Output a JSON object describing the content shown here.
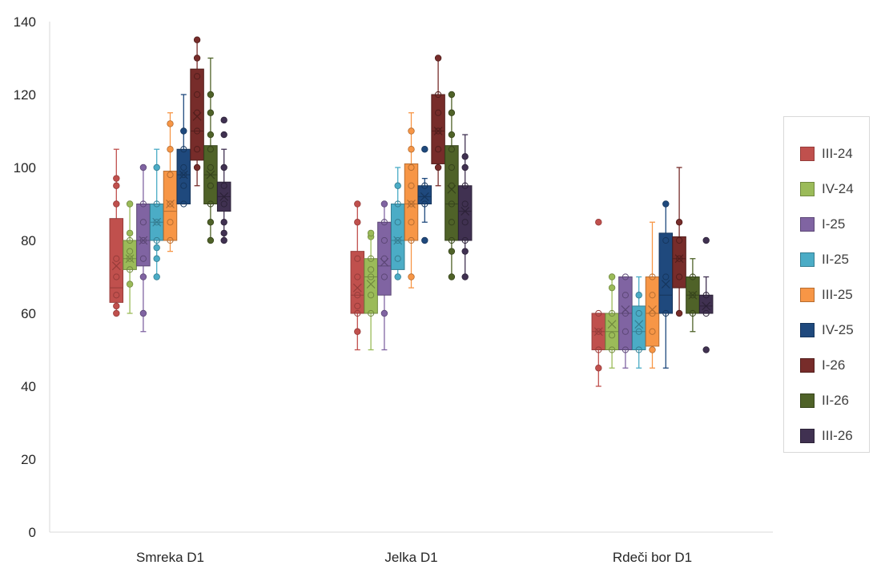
{
  "chart_data": {
    "type": "box",
    "title": "",
    "xlabel": "",
    "ylabel": "",
    "ylim": [
      0,
      140
    ],
    "yticks": [
      0,
      20,
      40,
      60,
      80,
      100,
      120,
      140
    ],
    "grid": false,
    "legend_position": "right",
    "categories": [
      "Smreka D1",
      "Jelka D1",
      "Rdeči bor D1"
    ],
    "series": [
      {
        "name": "III-24",
        "color": "#c0504d",
        "stroke": "#963c3a",
        "boxes": [
          {
            "min": 60,
            "q1": 63,
            "median": 67,
            "q3": 86,
            "max": 105,
            "mean": 73,
            "points": [
              60,
              62,
              65,
              70,
              75,
              90,
              95,
              97
            ]
          },
          {
            "min": 50,
            "q1": 60,
            "median": 65,
            "q3": 77,
            "max": 90,
            "mean": 67,
            "points": [
              55,
              60,
              62,
              65,
              70,
              75,
              85,
              90
            ]
          },
          {
            "min": 40,
            "q1": 50,
            "median": 55,
            "q3": 60,
            "max": 60,
            "mean": 55,
            "points": [
              45,
              50,
              55,
              60,
              85
            ]
          }
        ]
      },
      {
        "name": "IV-24",
        "color": "#9bbb59",
        "stroke": "#71893f",
        "boxes": [
          {
            "min": 60,
            "q1": 72,
            "median": 75,
            "q3": 80,
            "max": 90,
            "mean": 75,
            "points": [
              68,
              72,
              75,
              77,
              80,
              82,
              90
            ]
          },
          {
            "min": 50,
            "q1": 60,
            "median": 70,
            "q3": 75,
            "max": 82,
            "mean": 68,
            "points": [
              60,
              65,
              70,
              72,
              75,
              81,
              82
            ]
          },
          {
            "min": 45,
            "q1": 50,
            "median": 55,
            "q3": 60,
            "max": 70,
            "mean": 57,
            "points": [
              50,
              54,
              60,
              67,
              70
            ]
          }
        ]
      },
      {
        "name": "I-25",
        "color": "#8064a2",
        "stroke": "#5c4776",
        "boxes": [
          {
            "min": 55,
            "q1": 73,
            "median": 80,
            "q3": 90,
            "max": 100,
            "mean": 80,
            "points": [
              60,
              70,
              75,
              80,
              85,
              90,
              100
            ]
          },
          {
            "min": 50,
            "q1": 65,
            "median": 73,
            "q3": 85,
            "max": 90,
            "mean": 74,
            "points": [
              60,
              70,
              75,
              80,
              85,
              90
            ]
          },
          {
            "min": 45,
            "q1": 50,
            "median": 60,
            "q3": 70,
            "max": 70,
            "mean": 61,
            "points": [
              50,
              55,
              60,
              65,
              70
            ]
          }
        ]
      },
      {
        "name": "II-25",
        "color": "#4bacc6",
        "stroke": "#357d91",
        "boxes": [
          {
            "min": 70,
            "q1": 80,
            "median": 85,
            "q3": 90,
            "max": 105,
            "mean": 85,
            "points": [
              70,
              75,
              78,
              80,
              85,
              90,
              100
            ]
          },
          {
            "min": 70,
            "q1": 72,
            "median": 80,
            "q3": 90,
            "max": 100,
            "mean": 80,
            "points": [
              70,
              75,
              80,
              85,
              90,
              95
            ]
          },
          {
            "min": 45,
            "q1": 50,
            "median": 55,
            "q3": 62,
            "max": 70,
            "mean": 57,
            "points": [
              50,
              55,
              60,
              65
            ]
          }
        ]
      },
      {
        "name": "III-25",
        "color": "#f79646",
        "stroke": "#b66d31",
        "boxes": [
          {
            "min": 77,
            "q1": 80,
            "median": 88,
            "q3": 99,
            "max": 115,
            "mean": 90,
            "points": [
              80,
              85,
              90,
              98,
              105,
              112
            ]
          },
          {
            "min": 67,
            "q1": 80,
            "median": 90,
            "q3": 101,
            "max": 115,
            "mean": 90,
            "points": [
              70,
              80,
              85,
              90,
              95,
              100,
              105,
              110
            ]
          },
          {
            "min": 45,
            "q1": 51,
            "median": 60,
            "q3": 70,
            "max": 85,
            "mean": 61,
            "points": [
              50,
              55,
              60,
              65,
              70
            ]
          }
        ]
      },
      {
        "name": "IV-25",
        "color": "#1f497d",
        "stroke": "#16365d",
        "boxes": [
          {
            "min": 90,
            "q1": 90,
            "median": 98,
            "q3": 105,
            "max": 120,
            "mean": 98,
            "points": [
              90,
              95,
              98,
              100,
              105,
              110
            ]
          },
          {
            "min": 85,
            "q1": 90,
            "median": 92,
            "q3": 95,
            "max": 97,
            "mean": 92,
            "points": [
              80,
              90,
              95,
              105
            ]
          },
          {
            "min": 45,
            "q1": 60,
            "median": 65,
            "q3": 82,
            "max": 90,
            "mean": 68,
            "points": [
              60,
              70,
              80,
              90
            ]
          }
        ]
      },
      {
        "name": "I-26",
        "color": "#772c2a",
        "stroke": "#521e1c",
        "boxes": [
          {
            "min": 95,
            "q1": 102,
            "median": 110,
            "q3": 127,
            "max": 135,
            "mean": 114,
            "points": [
              100,
              105,
              110,
              115,
              120,
              125,
              130,
              135
            ]
          },
          {
            "min": 95,
            "q1": 101,
            "median": 110,
            "q3": 120,
            "max": 130,
            "mean": 110,
            "points": [
              100,
              105,
              110,
              115,
              120,
              130
            ]
          },
          {
            "min": 60,
            "q1": 67,
            "median": 75,
            "q3": 81,
            "max": 100,
            "mean": 75,
            "points": [
              60,
              70,
              75,
              80,
              85
            ]
          }
        ]
      },
      {
        "name": "II-26",
        "color": "#4f6228",
        "stroke": "#37441c",
        "boxes": [
          {
            "min": 80,
            "q1": 90,
            "median": 98,
            "q3": 106,
            "max": 130,
            "mean": 98,
            "points": [
              80,
              85,
              90,
              95,
              100,
              105,
              109,
              115,
              120
            ]
          },
          {
            "min": 70,
            "q1": 80,
            "median": 90,
            "q3": 106,
            "max": 120,
            "mean": 94,
            "points": [
              70,
              77,
              80,
              85,
              90,
              95,
              100,
              105,
              109,
              115,
              120
            ]
          },
          {
            "min": 55,
            "q1": 60,
            "median": 65,
            "q3": 70,
            "max": 75,
            "mean": 65,
            "points": [
              60,
              65,
              70
            ]
          }
        ]
      },
      {
        "name": "III-26",
        "color": "#403151",
        "stroke": "#2c2238",
        "boxes": [
          {
            "min": 80,
            "q1": 88,
            "median": 92,
            "q3": 96,
            "max": 105,
            "mean": 92,
            "points": [
              80,
              82,
              85,
              90,
              95,
              100,
              109,
              113
            ]
          },
          {
            "min": 70,
            "q1": 80,
            "median": 88,
            "q3": 95,
            "max": 109,
            "mean": 88,
            "points": [
              70,
              77,
              80,
              85,
              90,
              95,
              100,
              103
            ]
          },
          {
            "min": 60,
            "q1": 60,
            "median": 62,
            "q3": 65,
            "max": 70,
            "mean": 62,
            "points": [
              50,
              60,
              65,
              80
            ]
          }
        ]
      }
    ]
  }
}
